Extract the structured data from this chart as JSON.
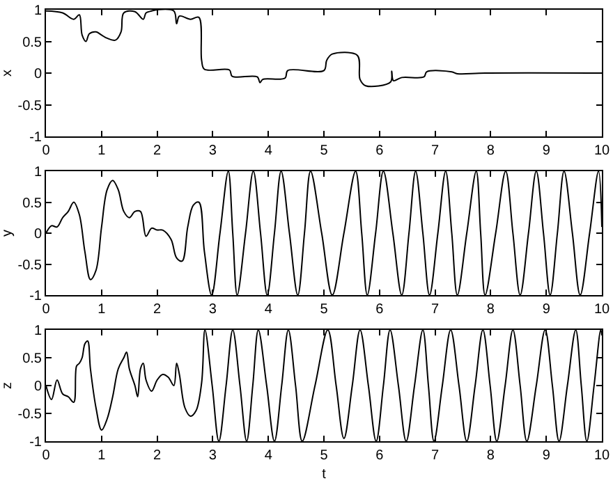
{
  "chart_data": [
    {
      "type": "line",
      "ylabel": "x",
      "xlim": [
        0,
        10
      ],
      "ylim": [
        -1,
        1
      ],
      "xticks": [
        0,
        1,
        2,
        3,
        4,
        5,
        6,
        7,
        8,
        9,
        10
      ],
      "yticks": [
        -1,
        -0.5,
        0,
        0.5,
        1
      ],
      "grid": false,
      "marker": "none",
      "line_style": "solid",
      "series": [
        {
          "color": "#000000",
          "x": [
            0,
            0.3,
            0.5,
            0.6,
            0.65,
            0.72,
            0.78,
            0.9,
            1.0,
            1.1,
            1.25,
            1.35,
            1.4,
            1.6,
            1.75,
            1.8,
            1.9,
            2.0,
            2.3,
            2.35,
            2.4,
            2.6,
            2.75,
            2.8,
            2.85,
            3.3,
            3.35,
            3.8,
            3.85,
            3.9,
            4.3,
            4.35,
            5.0,
            5.05,
            5.15,
            5.6,
            5.65,
            5.75,
            6.2,
            6.22,
            6.25,
            6.4,
            6.8,
            6.85,
            7.3,
            7.4,
            7.9,
            10
          ],
          "values": [
            0.98,
            0.95,
            0.85,
            0.92,
            0.6,
            0.5,
            0.62,
            0.65,
            0.6,
            0.55,
            0.52,
            0.65,
            0.95,
            0.97,
            0.85,
            0.95,
            0.98,
            1.0,
            0.98,
            0.78,
            0.9,
            0.85,
            0.88,
            0.2,
            0.06,
            0.05,
            -0.05,
            -0.06,
            -0.15,
            -0.1,
            -0.08,
            0.04,
            0.04,
            0.2,
            0.3,
            0.28,
            -0.1,
            -0.2,
            -0.14,
            0.03,
            -0.12,
            -0.07,
            -0.06,
            0.02,
            0.02,
            -0.01,
            0.0,
            0.0
          ]
        }
      ]
    },
    {
      "type": "line",
      "ylabel": "y",
      "xlim": [
        0,
        10
      ],
      "ylim": [
        -1,
        1
      ],
      "xticks": [
        0,
        1,
        2,
        3,
        4,
        5,
        6,
        7,
        8,
        9,
        10
      ],
      "yticks": [
        -1,
        -0.5,
        0,
        0.5,
        1
      ],
      "grid": false,
      "marker": "none",
      "line_style": "solid",
      "series": [
        {
          "color": "#000000",
          "x": [
            0,
            0.1,
            0.2,
            0.3,
            0.4,
            0.5,
            0.6,
            0.7,
            0.8,
            0.9,
            1.0,
            1.1,
            1.2,
            1.3,
            1.4,
            1.5,
            1.6,
            1.7,
            1.8,
            1.9,
            2.0,
            2.1,
            2.25,
            2.35,
            2.45,
            2.55,
            2.65,
            2.75,
            2.85,
            2.98,
            3.13,
            3.28,
            3.36,
            3.44,
            3.59,
            3.73,
            3.86,
            3.98,
            4.11,
            4.23,
            4.38,
            4.53,
            4.65,
            4.76,
            4.96,
            5.15,
            5.36,
            5.57,
            5.68,
            5.78,
            5.93,
            6.07,
            6.24,
            6.4,
            6.53,
            6.65,
            6.78,
            6.9,
            7.05,
            7.19,
            7.3,
            7.4,
            7.57,
            7.74,
            7.82,
            7.9,
            8.09,
            8.27,
            8.4,
            8.53,
            8.68,
            8.82,
            8.95,
            9.07,
            9.2,
            9.32,
            9.47,
            9.61,
            9.78,
            9.94,
            10
          ],
          "values": [
            0,
            0.12,
            0.1,
            0.25,
            0.35,
            0.5,
            0.3,
            -0.3,
            -0.75,
            -0.6,
            0.1,
            0.7,
            0.85,
            0.7,
            0.35,
            0.25,
            0.35,
            0.35,
            -0.05,
            0.08,
            0.05,
            0.05,
            -0.1,
            -0.4,
            -0.45,
            0.1,
            0.45,
            0.5,
            -0.3,
            -1,
            0,
            1,
            0,
            -1,
            0,
            1,
            0,
            -1,
            0,
            1,
            0,
            -1,
            0,
            1,
            0,
            -1,
            0,
            1,
            0,
            -1,
            0,
            1,
            0,
            -1,
            0,
            1,
            0,
            -1,
            0,
            1,
            0,
            -1,
            0,
            1,
            0,
            -1,
            0,
            1,
            0,
            -1,
            0,
            1,
            0,
            -1,
            0,
            1,
            0,
            -1,
            0,
            1,
            0.1
          ]
        }
      ]
    },
    {
      "type": "line",
      "xlabel": "t",
      "ylabel": "z",
      "xlim": [
        0,
        10
      ],
      "ylim": [
        -1,
        1
      ],
      "xticks": [
        0,
        1,
        2,
        3,
        4,
        5,
        6,
        7,
        8,
        9,
        10
      ],
      "yticks": [
        -1,
        -0.5,
        0,
        0.5,
        1
      ],
      "grid": false,
      "marker": "none",
      "line_style": "solid",
      "series": [
        {
          "color": "#000000",
          "x": [
            0,
            0.1,
            0.2,
            0.3,
            0.4,
            0.5,
            0.55,
            0.6,
            0.65,
            0.7,
            0.75,
            0.8,
            0.9,
            1.0,
            1.1,
            1.2,
            1.3,
            1.4,
            1.45,
            1.5,
            1.6,
            1.65,
            1.7,
            1.75,
            1.8,
            1.9,
            2.0,
            2.1,
            2.2,
            2.3,
            2.35,
            2.4,
            2.5,
            2.6,
            2.7,
            2.8,
            2.86,
            2.99,
            3.11,
            3.24,
            3.36,
            3.49,
            3.61,
            3.72,
            3.82,
            3.97,
            4.11,
            4.24,
            4.36,
            4.49,
            4.61,
            4.84,
            5.07,
            5.22,
            5.36,
            5.51,
            5.65,
            5.8,
            5.94,
            6.07,
            6.19,
            6.34,
            6.48,
            6.63,
            6.78,
            6.88,
            6.98,
            7.13,
            7.28,
            7.43,
            7.57,
            7.72,
            7.86,
            7.99,
            8.11,
            8.26,
            8.4,
            8.53,
            8.65,
            8.82,
            8.98,
            9.11,
            9.23,
            9.38,
            9.53,
            9.63,
            9.73,
            9.86,
            9.98,
            10
          ],
          "values": [
            0,
            -0.25,
            0.1,
            -0.15,
            -0.2,
            -0.3,
            0.35,
            0.4,
            0.5,
            0.75,
            0.8,
            0.3,
            -0.4,
            -0.8,
            -0.6,
            -0.2,
            0.3,
            0.5,
            0.6,
            0.3,
            0,
            -0.2,
            0.3,
            0.4,
            0.1,
            -0.1,
            0.1,
            0.2,
            0.15,
            0,
            0.4,
            0.2,
            -0.4,
            -0.55,
            -0.45,
            0.05,
            1,
            0,
            -1,
            0,
            1,
            0,
            -1,
            0,
            1,
            0,
            -1,
            0,
            1,
            0,
            -1,
            0,
            1,
            0,
            -0.95,
            0,
            1,
            0,
            -1,
            0,
            1,
            0,
            -1,
            0,
            1,
            0,
            -1,
            0,
            1,
            0,
            -1,
            0,
            1,
            0,
            -1,
            0,
            1,
            0,
            -1,
            0,
            1,
            0,
            -1,
            0,
            1,
            0,
            -1,
            0,
            1,
            0.9
          ]
        }
      ]
    }
  ]
}
